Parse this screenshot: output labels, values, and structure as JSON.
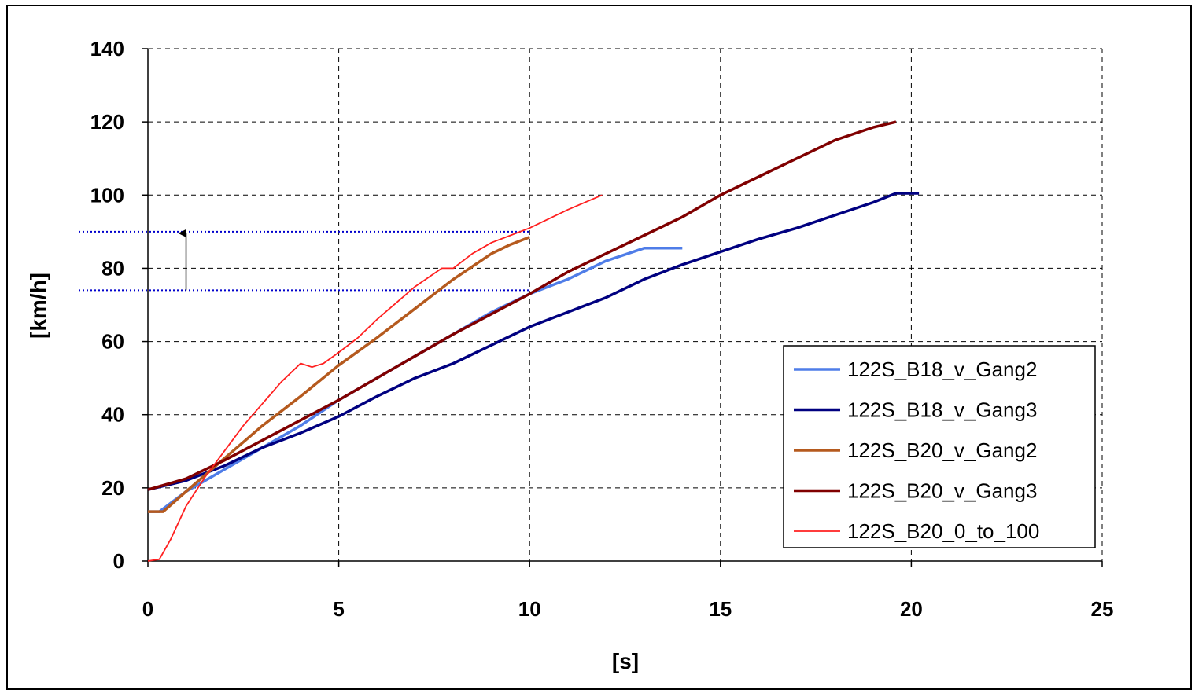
{
  "chart_data": {
    "type": "line",
    "title": "",
    "xlabel": "[s]",
    "ylabel": "[km/h]",
    "xlim": [
      0,
      25
    ],
    "ylim": [
      0,
      140
    ],
    "x_ticks": [
      "0",
      "5",
      "10",
      "15",
      "20",
      "25"
    ],
    "y_ticks": [
      "0",
      "20",
      "40",
      "60",
      "80",
      "100",
      "120",
      "140"
    ],
    "grid": "dashed",
    "legend_position": "right-inside",
    "series": [
      {
        "name": "122S_B18_v_Gang2",
        "color": "#4f7de8",
        "x": [
          0,
          0.3,
          1,
          2,
          3,
          4,
          5,
          6,
          7,
          8,
          9,
          10,
          11,
          12,
          13,
          14
        ],
        "y": [
          13.5,
          13.5,
          19,
          25,
          31,
          37,
          44,
          50,
          56,
          62,
          68,
          73,
          77,
          82,
          85.5,
          85.5
        ]
      },
      {
        "name": "122S_B18_v_Gang3",
        "color": "#000080",
        "x": [
          0,
          1,
          2,
          3,
          4,
          5,
          6,
          7,
          8,
          9,
          10,
          11,
          12,
          13,
          14,
          15,
          16,
          17,
          18,
          19,
          19.6,
          20.2
        ],
        "y": [
          19.5,
          22,
          26,
          31,
          35,
          39.5,
          45,
          50,
          54,
          59,
          64,
          68,
          72,
          77,
          81,
          84.5,
          88,
          91,
          94.5,
          98,
          100.5,
          100.5
        ]
      },
      {
        "name": "122S_B20_v_Gang2",
        "color": "#b55a1e",
        "x": [
          0,
          0.4,
          1,
          2,
          3,
          4,
          5,
          6,
          7,
          8,
          9,
          9.5,
          10
        ],
        "y": [
          13.5,
          13.5,
          19,
          28,
          37,
          45,
          53.5,
          61,
          69,
          77,
          84,
          86.5,
          88.5
        ]
      },
      {
        "name": "122S_B20_v_Gang3",
        "color": "#800000",
        "x": [
          0,
          1,
          2,
          3,
          4,
          5,
          6,
          7,
          8,
          9,
          10,
          11,
          12,
          13,
          14,
          15,
          16,
          17,
          18,
          19,
          19.6
        ],
        "y": [
          19.5,
          22.5,
          27.5,
          33,
          38.5,
          44,
          50,
          56,
          62,
          67.5,
          73,
          79,
          84,
          89,
          94,
          100,
          105,
          110,
          115,
          118.5,
          120
        ]
      },
      {
        "name": "122S_B20_0_to_100",
        "color": "#ff2020",
        "x": [
          0,
          0.3,
          0.6,
          1,
          1.5,
          2,
          2.5,
          3,
          3.5,
          4,
          4.3,
          4.6,
          5,
          5.5,
          6,
          7,
          7.7,
          8,
          8.5,
          9,
          10,
          11,
          11.9
        ],
        "y": [
          0,
          0.5,
          6,
          15,
          23,
          30,
          37,
          43,
          49,
          54,
          53,
          54,
          57,
          61,
          66,
          75,
          80,
          80,
          84,
          87,
          91,
          96,
          100
        ]
      }
    ],
    "reference_lines": {
      "color": "#0000cc",
      "style": "dotted",
      "y_values": [
        74,
        90
      ],
      "arrow": {
        "x": 1,
        "from_y": 74,
        "to_y": 90
      }
    }
  }
}
